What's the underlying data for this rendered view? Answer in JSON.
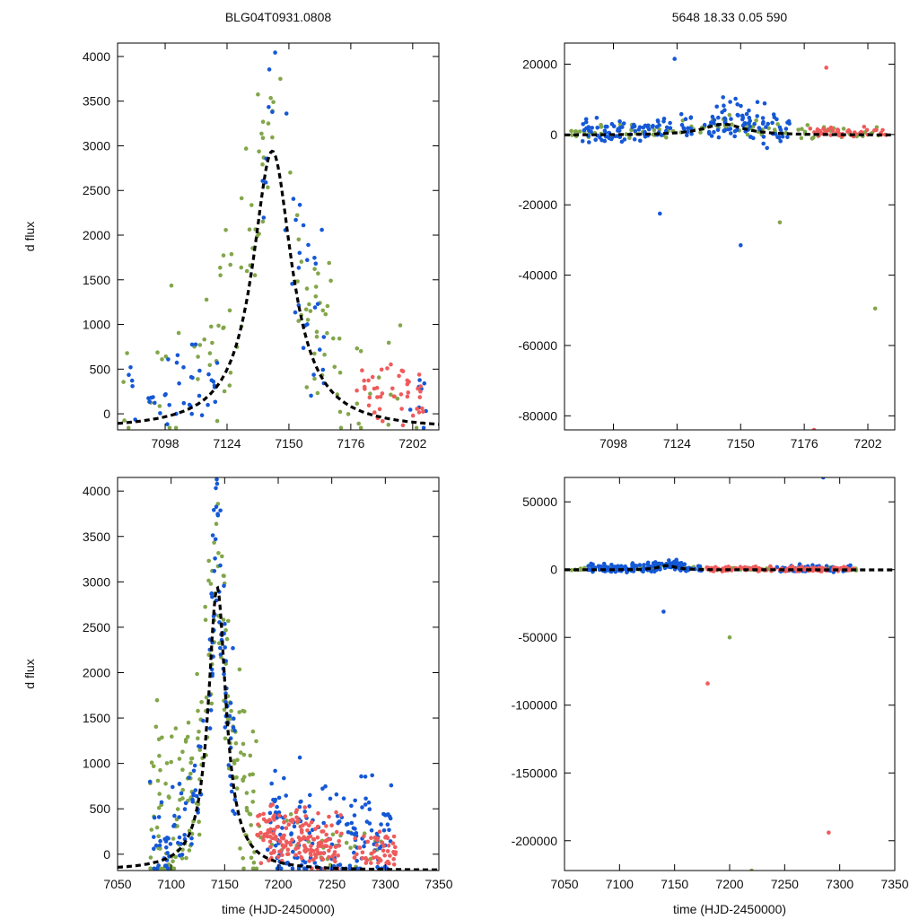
{
  "page_title": "BLG04T0931.0808",
  "chart_data": [
    {
      "id": "top-left",
      "type": "scatter",
      "title": "BLG04T0931.0808",
      "xlabel": "",
      "ylabel": "d flux",
      "xlim": [
        7078,
        7213
      ],
      "ylim": [
        -180,
        4150
      ],
      "xticks": [
        7098,
        7124,
        7150,
        7176,
        7202
      ],
      "yticks": [
        0,
        500,
        1000,
        1500,
        2000,
        2500,
        3000,
        3500,
        4000
      ],
      "model": {
        "peak_time": 7143,
        "peak_flux": 3120,
        "width_days": 10,
        "style": "dashed",
        "color": "#000000"
      },
      "series": [
        {
          "name": "green",
          "color": "#82a64a",
          "segments": [
            [
              7080,
              7208,
              0.8,
              60
            ],
            [
              7110,
              7180,
              0.8,
              60
            ]
          ]
        },
        {
          "name": "blue",
          "color": "#1558d6",
          "segments": [
            [
              7082,
              7120,
              0.35,
              40
            ],
            [
              7135,
              7165,
              0.8,
              35
            ],
            [
              7200,
              7208,
              0.3,
              8
            ]
          ]
        },
        {
          "name": "red",
          "color": "#ef5b5b",
          "segments": [
            [
              7178,
              7208,
              0.3,
              45
            ]
          ]
        }
      ]
    },
    {
      "id": "top-right",
      "type": "scatter",
      "title": "5648   18.33   0.05   590",
      "xlabel": "",
      "ylabel": "",
      "xlim": [
        7078,
        7213
      ],
      "ylim": [
        -84000,
        26000
      ],
      "xticks": [
        7098,
        7124,
        7150,
        7176,
        7202
      ],
      "yticks": [
        20000,
        0,
        -20000,
        -40000,
        -60000,
        -80000
      ],
      "model": {
        "peak_time": 7143,
        "peak_flux": 3120,
        "width_days": 10,
        "style": "dashed",
        "color": "#000000"
      },
      "series": [
        {
          "name": "green",
          "color": "#82a64a",
          "segments": [
            [
              7080,
              7208,
              0.06,
              100
            ]
          ]
        },
        {
          "name": "blue",
          "color": "#1558d6",
          "segments": [
            [
              7085,
              7130,
              0.12,
              90
            ],
            [
              7135,
              7170,
              0.18,
              90
            ]
          ]
        },
        {
          "name": "red",
          "color": "#ef5b5b",
          "segments": [
            [
              7178,
              7210,
              0.04,
              45
            ]
          ]
        }
      ],
      "outliers": [
        {
          "x": 7117,
          "y": -22500,
          "series": "blue"
        },
        {
          "x": 7150,
          "y": -31500,
          "series": "blue"
        },
        {
          "x": 7166,
          "y": -25000,
          "series": "green"
        },
        {
          "x": 7205,
          "y": -49500,
          "series": "green"
        },
        {
          "x": 7185,
          "y": 19000,
          "series": "red"
        },
        {
          "x": 7123,
          "y": 21500,
          "series": "blue"
        },
        {
          "x": 7180,
          "y": -84000,
          "series": "red"
        }
      ]
    },
    {
      "id": "bottom-left",
      "type": "scatter",
      "title": "",
      "xlabel": "time (HJD-2450000)",
      "ylabel": "d flux",
      "xlim": [
        7050,
        7350
      ],
      "ylim": [
        -180,
        4150
      ],
      "xticks": [
        7050,
        7100,
        7150,
        7200,
        7250,
        7300,
        7350
      ],
      "yticks": [
        0,
        500,
        1000,
        1500,
        2000,
        2500,
        3000,
        3500,
        4000
      ],
      "model": {
        "peak_time": 7143,
        "peak_flux": 3120,
        "width_days": 10,
        "style": "dashed",
        "color": "#000000"
      },
      "series": [
        {
          "name": "green",
          "color": "#82a64a",
          "segments": [
            [
              7080,
              7180,
              0.8,
              200
            ],
            [
              7180,
              7300,
              0.2,
              30
            ]
          ]
        },
        {
          "name": "blue",
          "color": "#1558d6",
          "segments": [
            [
              7080,
              7130,
              0.4,
              60
            ],
            [
              7135,
              7160,
              0.8,
              70
            ],
            [
              7190,
              7310,
              0.5,
              170
            ]
          ]
        },
        {
          "name": "red",
          "color": "#ef5b5b",
          "segments": [
            [
              7180,
              7260,
              0.25,
              170
            ],
            [
              7270,
              7310,
              0.15,
              50
            ]
          ]
        }
      ]
    },
    {
      "id": "bottom-right",
      "type": "scatter",
      "title": "",
      "xlabel": "time (HJD-2450000)",
      "ylabel": "",
      "xlim": [
        7050,
        7350
      ],
      "ylim": [
        -222000,
        68000
      ],
      "xticks": [
        7050,
        7100,
        7150,
        7200,
        7250,
        7300,
        7350
      ],
      "yticks": [
        50000,
        0,
        -50000,
        -100000,
        -150000,
        -200000
      ],
      "model": {
        "peak_time": 7143,
        "peak_flux": 3120,
        "width_days": 10,
        "style": "dashed",
        "color": "#000000"
      },
      "series": [
        {
          "name": "green",
          "color": "#82a64a",
          "segments": [
            [
              7055,
              7315,
              0.015,
              120
            ]
          ]
        },
        {
          "name": "blue",
          "color": "#1558d6",
          "segments": [
            [
              7070,
              7175,
              0.04,
              160
            ],
            [
              7240,
              7310,
              0.03,
              60
            ]
          ]
        },
        {
          "name": "red",
          "color": "#ef5b5b",
          "segments": [
            [
              7178,
              7315,
              0.02,
              120
            ]
          ]
        }
      ],
      "outliers": [
        {
          "x": 7290,
          "y": -194000,
          "series": "red"
        },
        {
          "x": 7180,
          "y": -84000,
          "series": "red"
        },
        {
          "x": 7200,
          "y": -50000,
          "series": "green"
        },
        {
          "x": 7220,
          "y": -222000,
          "series": "green"
        },
        {
          "x": 7285,
          "y": 68000,
          "series": "blue"
        },
        {
          "x": 7140,
          "y": -31000,
          "series": "blue"
        }
      ]
    }
  ]
}
